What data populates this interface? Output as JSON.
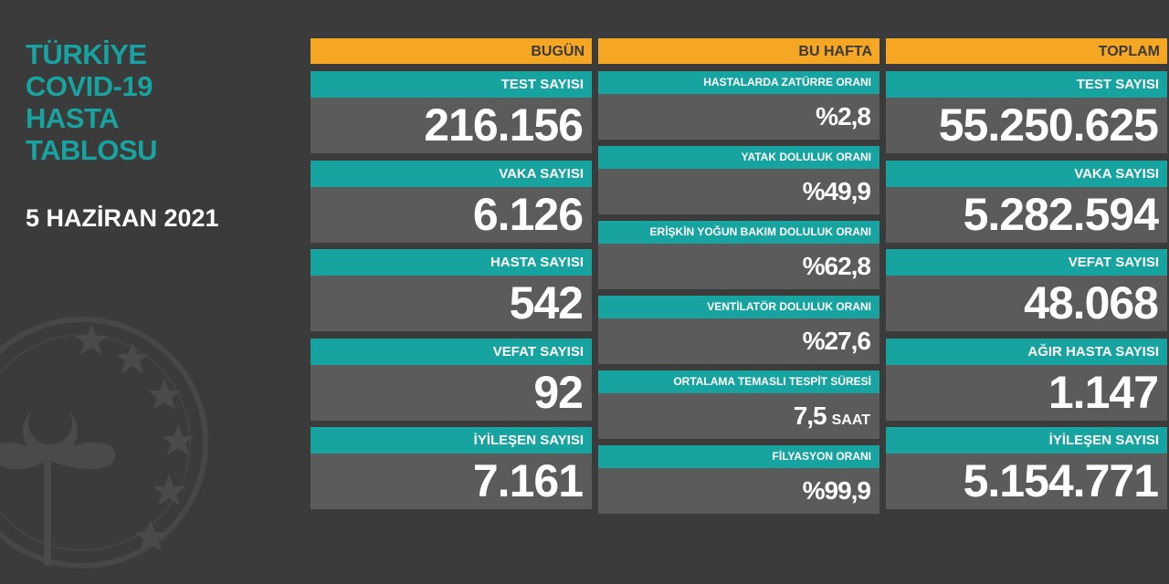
{
  "header": {
    "title": [
      "TÜRKİYE",
      "COVID-19",
      "HASTA",
      "TABLOSU"
    ],
    "date": "5 HAZİRAN 2021"
  },
  "columns": [
    {
      "header": "BUGÜN",
      "items": [
        {
          "label": "TEST SAYISI",
          "value": "216.156"
        },
        {
          "label": "VAKA SAYISI",
          "value": "6.126"
        },
        {
          "label": "HASTA SAYISI",
          "value": "542"
        },
        {
          "label": "VEFAT SAYISI",
          "value": "92"
        },
        {
          "label": "İYİLEŞEN SAYISI",
          "value": "7.161"
        }
      ]
    },
    {
      "header": "BU HAFTA",
      "items": [
        {
          "label": "HASTALARDA ZATÜRRE ORANI",
          "value": "%2,8"
        },
        {
          "label": "YATAK DOLULUK ORANI",
          "value": "%49,9"
        },
        {
          "label": "ERİŞKİN YOĞUN BAKIM DOLULUK ORANI",
          "value": "%62,8"
        },
        {
          "label": "VENTİLATÖR DOLULUK ORANI",
          "value": "%27,6"
        },
        {
          "label": "ORTALAMA TEMASLI TESPİT SÜRESİ",
          "value": "7,5",
          "unit": "SAAT"
        },
        {
          "label": "FİLYASYON ORANI",
          "value": "%99,9"
        }
      ]
    },
    {
      "header": "TOPLAM",
      "items": [
        {
          "label": "TEST SAYISI",
          "value": "55.250.625"
        },
        {
          "label": "VAKA SAYISI",
          "value": "5.282.594"
        },
        {
          "label": "VEFAT SAYISI",
          "value": "48.068"
        },
        {
          "label": "AĞIR HASTA SAYISI",
          "value": "1.147"
        },
        {
          "label": "İYİLEŞEN SAYISI",
          "value": "5.154.771"
        }
      ]
    }
  ]
}
